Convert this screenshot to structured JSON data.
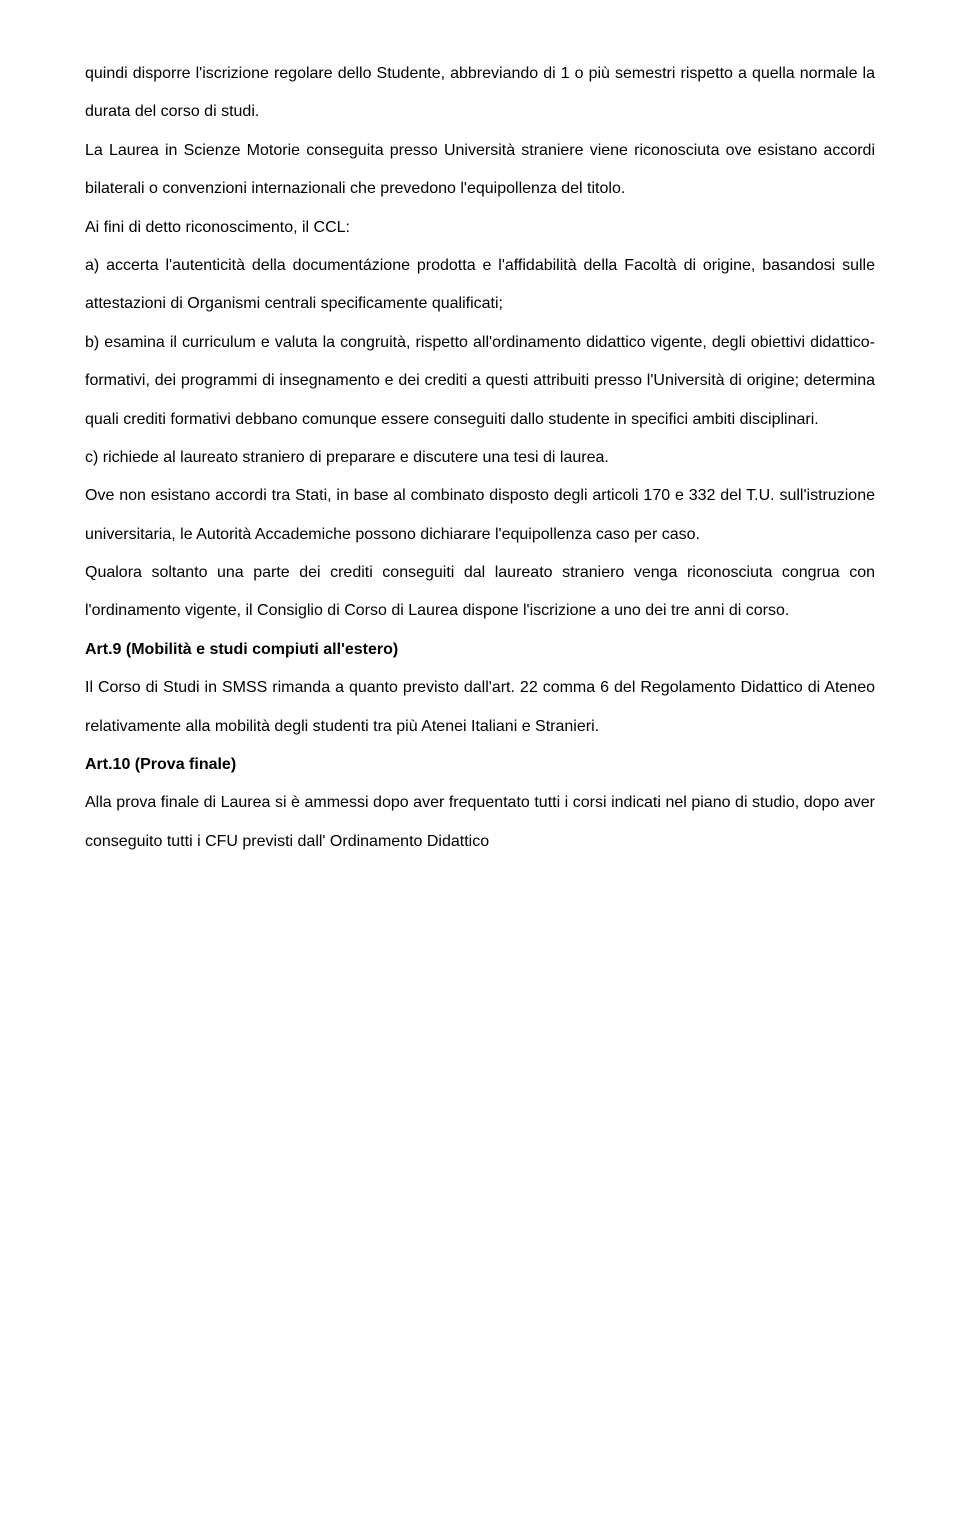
{
  "paragraphs": {
    "p1": "quindi disporre l'iscrizione regolare dello Studente,  abbreviando di 1 o più semestri rispetto a quella normale la durata del corso di studi.",
    "p2": "La Laurea in Scienze Motorie conseguita presso Università straniere viene riconosciuta ove esistano accordi bilaterali o convenzioni internazionali che prevedono l'equipollenza del titolo.",
    "p3": "Ai fini di detto riconoscimento, il CCL:",
    "p4": "a) accerta l'autenticità della documentázione prodotta e l'affidabilità della Facoltà di origine, basandosi sulle attestazioni di Organismi centrali specificamente qualificati;",
    "p5": "b) esamina il curriculum e valuta la congruità, rispetto all'ordinamento didattico vigente, degli obiettivi didattico-formativi, dei programmi di insegnamento e dei crediti a questi attribuiti presso l'Università di origine; determina quali crediti formativi debbano comunque essere conseguiti dallo studente in specifici ambiti disciplinari.",
    "p6": "c) richiede al laureato straniero di preparare e discutere una tesi di laurea.",
    "p7": "Ove non esistano accordi tra Stati, in base al combinato disposto degli articoli 170 e 332 del T.U. sull'istruzione universitaria, le Autorità Accademiche possono dichiarare l'equipollenza caso per caso.",
    "p8": "Qualora soltanto una parte dei crediti conseguiti dal laureato straniero venga riconosciuta congrua con l'ordinamento vigente, il Consiglio di Corso di Laurea dispone l'iscrizione a uno dei tre anni di corso.",
    "h1": "Art.9 (Mobilità e studi compiuti all'estero)",
    "p9": "Il Corso di Studi in SMSS rimanda a quanto previsto dall'art. 22 comma 6 del Regolamento Didattico di Ateneo relativamente alla mobilità degli studenti tra più Atenei Italiani e Stranieri.",
    "h2": "Art.10 (Prova finale)",
    "p10": "Alla prova finale di Laurea si è ammessi dopo aver frequentato tutti i corsi indicati nel piano di studio, dopo aver conseguito  tutti i CFU previsti dall' Ordinamento Didattico"
  }
}
